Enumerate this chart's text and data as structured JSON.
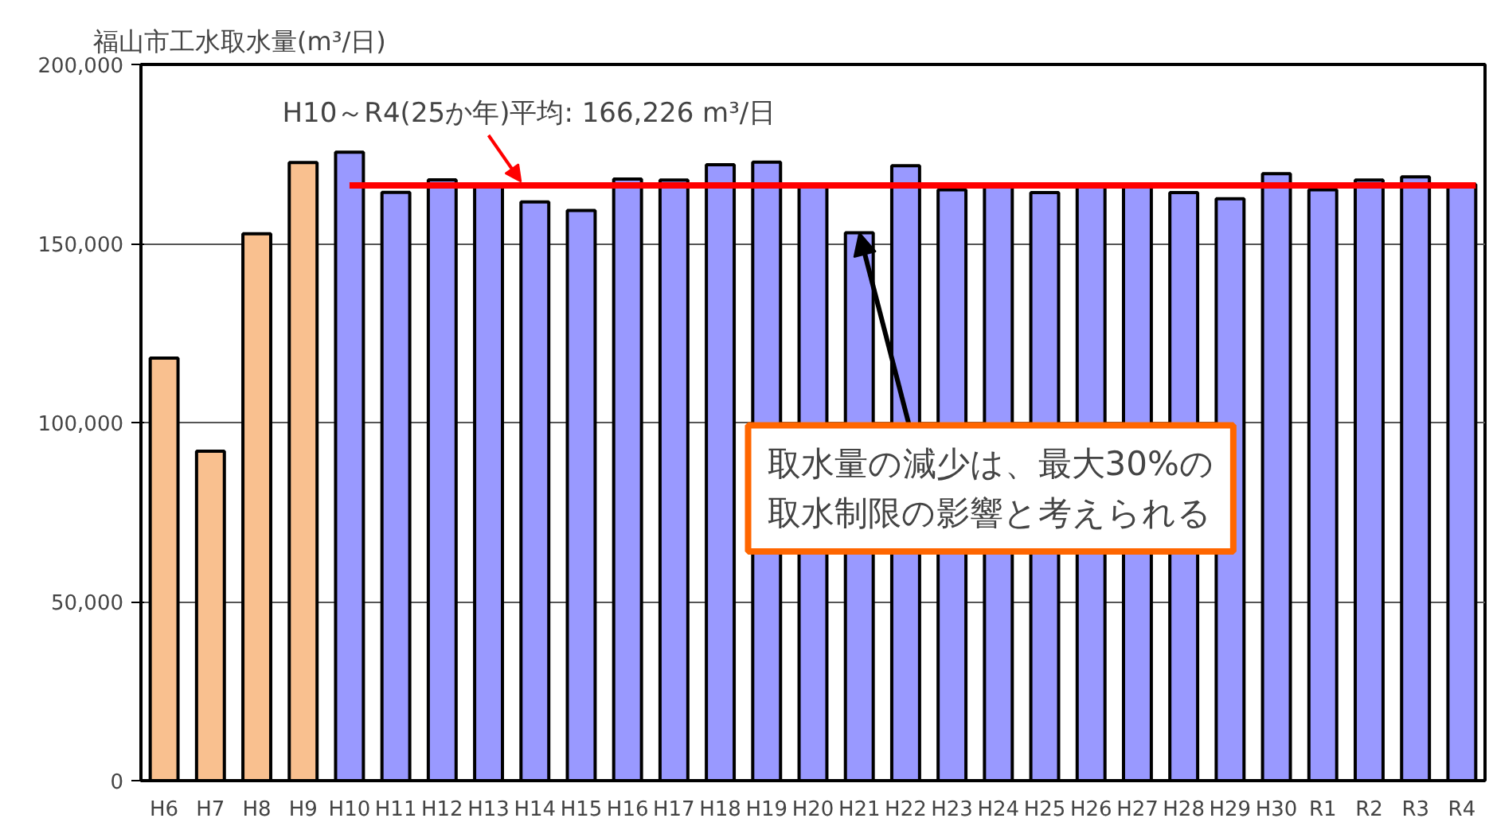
{
  "chart_data": {
    "type": "bar",
    "title": "福山市工水取水量(m³/日)",
    "categories": [
      "H6",
      "H7",
      "H8",
      "H9",
      "H10",
      "H11",
      "H12",
      "H13",
      "H14",
      "H15",
      "H16",
      "H17",
      "H18",
      "H19",
      "H20",
      "H21",
      "H22",
      "H23",
      "H24",
      "H25",
      "H26",
      "H27",
      "H28",
      "H29",
      "H30",
      "R1",
      "R2",
      "R3",
      "R4"
    ],
    "values": [
      118000,
      92000,
      152700,
      172600,
      175500,
      164300,
      167800,
      166500,
      161600,
      159200,
      168000,
      167700,
      172000,
      172700,
      166500,
      153000,
      171700,
      165000,
      166500,
      164200,
      166500,
      166500,
      164200,
      162500,
      169500,
      165000,
      167700,
      168600,
      166500
    ],
    "colors": [
      "#f9c08f",
      "#f9c08f",
      "#f9c08f",
      "#f9c08f",
      "#9999ff",
      "#9999ff",
      "#9999ff",
      "#9999ff",
      "#9999ff",
      "#9999ff",
      "#9999ff",
      "#9999ff",
      "#9999ff",
      "#9999ff",
      "#9999ff",
      "#9999ff",
      "#9999ff",
      "#9999ff",
      "#9999ff",
      "#9999ff",
      "#9999ff",
      "#9999ff",
      "#9999ff",
      "#9999ff",
      "#9999ff",
      "#9999ff",
      "#9999ff",
      "#9999ff",
      "#9999ff"
    ],
    "ylim": [
      0,
      200000
    ],
    "yticks": [
      {
        "value": 0,
        "label": "0"
      },
      {
        "value": 50000,
        "label": "50,000"
      },
      {
        "value": 100000,
        "label": "100,000"
      },
      {
        "value": 150000,
        "label": "150,000"
      },
      {
        "value": 200000,
        "label": "200,000"
      }
    ],
    "grid": "y",
    "ref_lines": [
      {
        "axis": "y",
        "value": 166226,
        "label": "H10～R4(25か年)平均: 166,226 m³/日",
        "color": "#ff0000"
      }
    ],
    "annotations": [
      {
        "text": "取水量の減少は、最大30%の取水制限の影響と考えられる",
        "x": "H21",
        "y": 153000
      }
    ]
  }
}
